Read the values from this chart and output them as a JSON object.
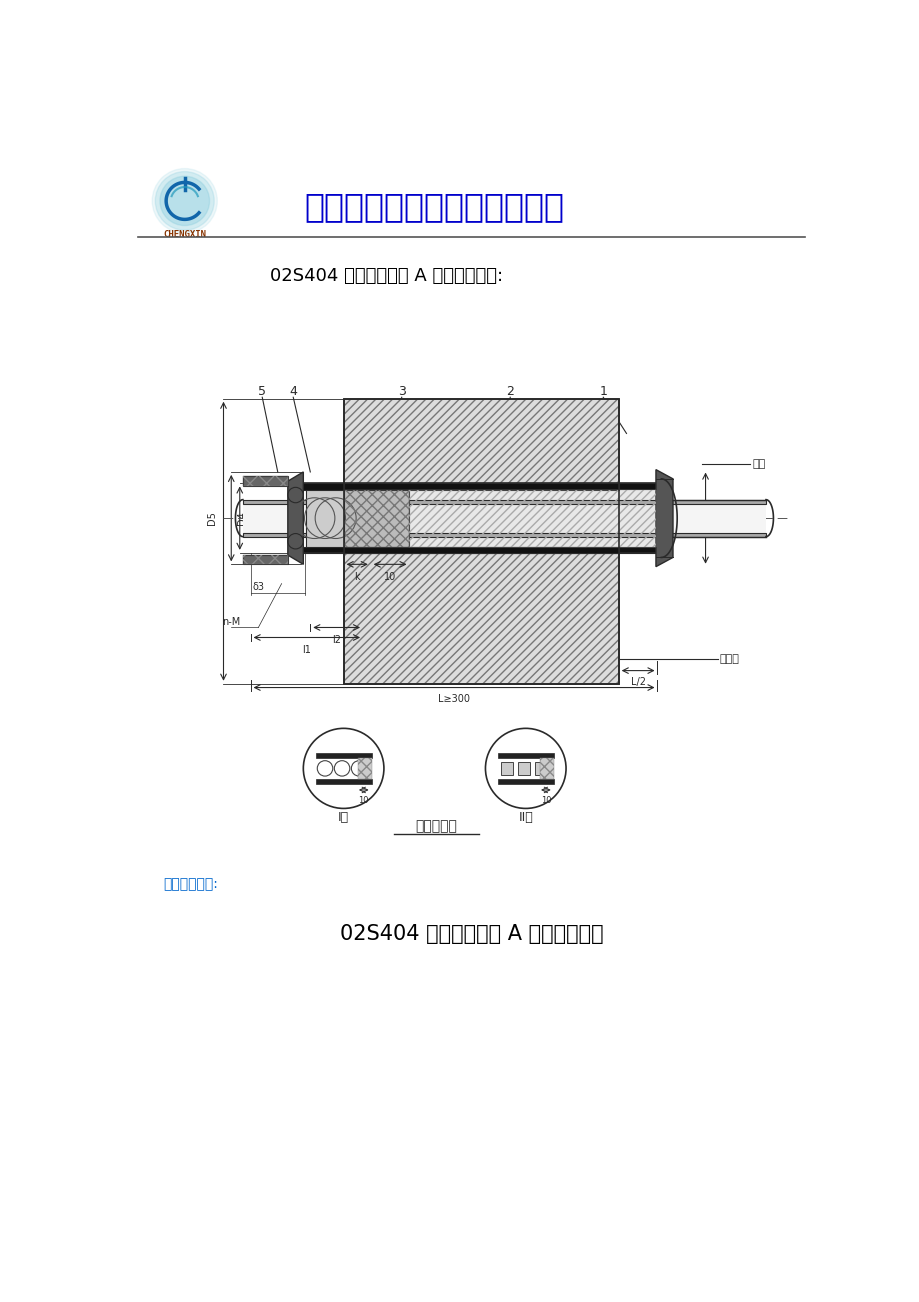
{
  "page_bg": "#ffffff",
  "company_name": "巩义市诚信新技术供水设备厂",
  "company_name_color": "#0000cc",
  "title1": "02S404 柔性防水套管 A 型结构安装图:",
  "title1_color": "#000000",
  "title1_fontsize": 13,
  "subtitle_material": "材料表见下页:",
  "subtitle_material_color": "#0066cc",
  "title2": "02S404 柔性防水套管 A 型结构材料表",
  "title2_color": "#000000",
  "title2_fontsize": 15,
  "seal_label": "密封圈结构",
  "lc": "#2a2a2a",
  "dim_color": "#2a2a2a",
  "hatch_wall_color": "#bbbbbb",
  "pipe_fill": "#e0e0e0"
}
